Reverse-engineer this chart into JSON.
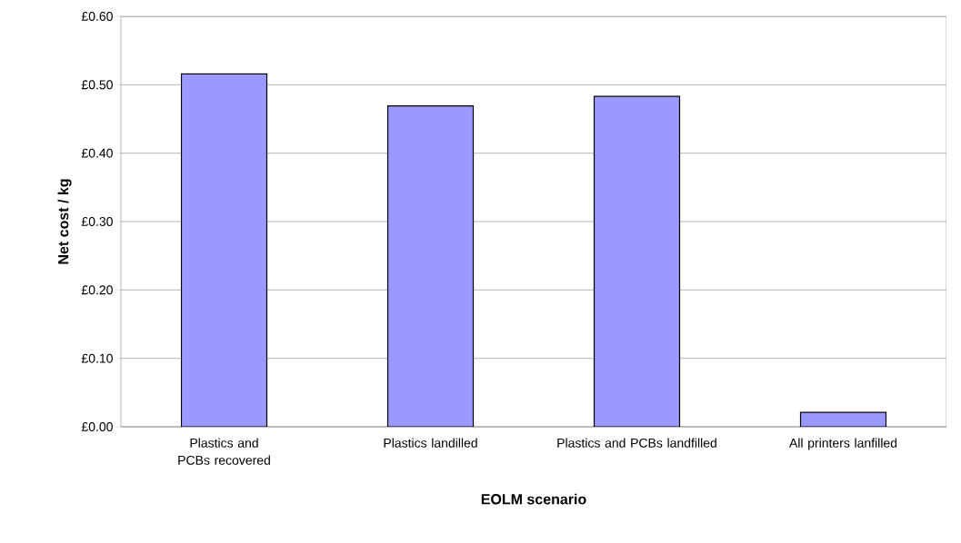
{
  "chart_data": {
    "type": "bar",
    "xlabel": "EOLM scenario",
    "ylabel": "Net cost / kg",
    "categories": [
      "Plastics and PCBs recovered",
      "Plastics landilled",
      "Plastics and PCBs landfilled",
      "All printers lanfilled"
    ],
    "values": [
      0.516,
      0.469,
      0.483,
      0.021
    ],
    "color": "#9999ff",
    "ylim": [
      0,
      0.6
    ],
    "yticks": [
      {
        "value": 0,
        "label": "£0.00"
      },
      {
        "value": 0.1,
        "label": "£0.10"
      },
      {
        "value": 0.2,
        "label": "£0.20"
      },
      {
        "value": 0.3,
        "label": "£0.30"
      },
      {
        "value": 0.4,
        "label": "£0.40"
      },
      {
        "value": 0.5,
        "label": "£0.50"
      },
      {
        "value": 0.6,
        "label": "£0.60"
      }
    ],
    "grid": "y"
  }
}
